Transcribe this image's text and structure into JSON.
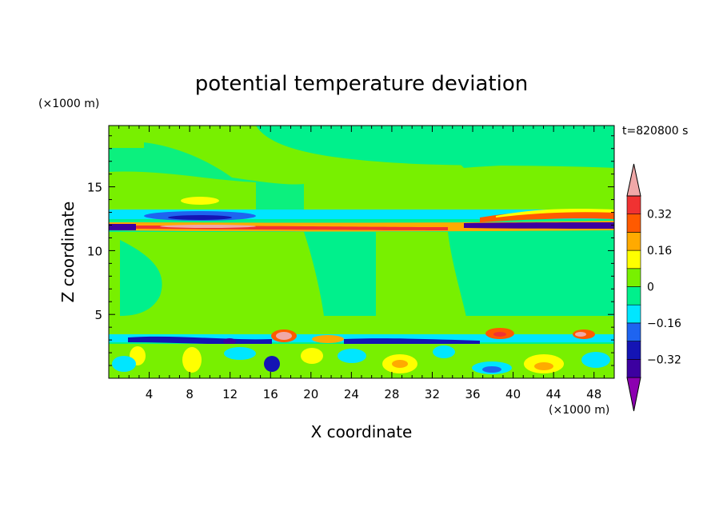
{
  "chart_data": {
    "type": "heatmap",
    "title": "potential temperature deviation",
    "time_label": "t=820800 s",
    "xlabel": "X coordinate",
    "ylabel": "Z coordinate",
    "x_unit": "(×1000 m)",
    "y_unit": "(×1000 m)",
    "xlim": [
      0,
      50
    ],
    "ylim": [
      0,
      19.8
    ],
    "x_ticks": [
      4,
      8,
      12,
      16,
      20,
      24,
      28,
      32,
      36,
      40,
      44,
      48
    ],
    "y_ticks": [
      5,
      10,
      15
    ],
    "colorbar": {
      "levels": [
        -0.4,
        -0.32,
        -0.24,
        -0.16,
        -0.08,
        0,
        0.08,
        0.16,
        0.24,
        0.32,
        0.4
      ],
      "tick_labels": [
        "0.32",
        "0.16",
        "0",
        "−0.16",
        "−0.32"
      ],
      "tick_values": [
        0.32,
        0.16,
        0,
        -0.16,
        -0.32
      ],
      "colors": [
        "#8c00b0",
        "#3c00a0",
        "#1414b4",
        "#1e64f0",
        "#00e6ff",
        "#00f08c",
        "#78f000",
        "#ffff00",
        "#ffaa00",
        "#ff5a00",
        "#f03232",
        "#f0a8a8"
      ],
      "extend": "both"
    }
  }
}
